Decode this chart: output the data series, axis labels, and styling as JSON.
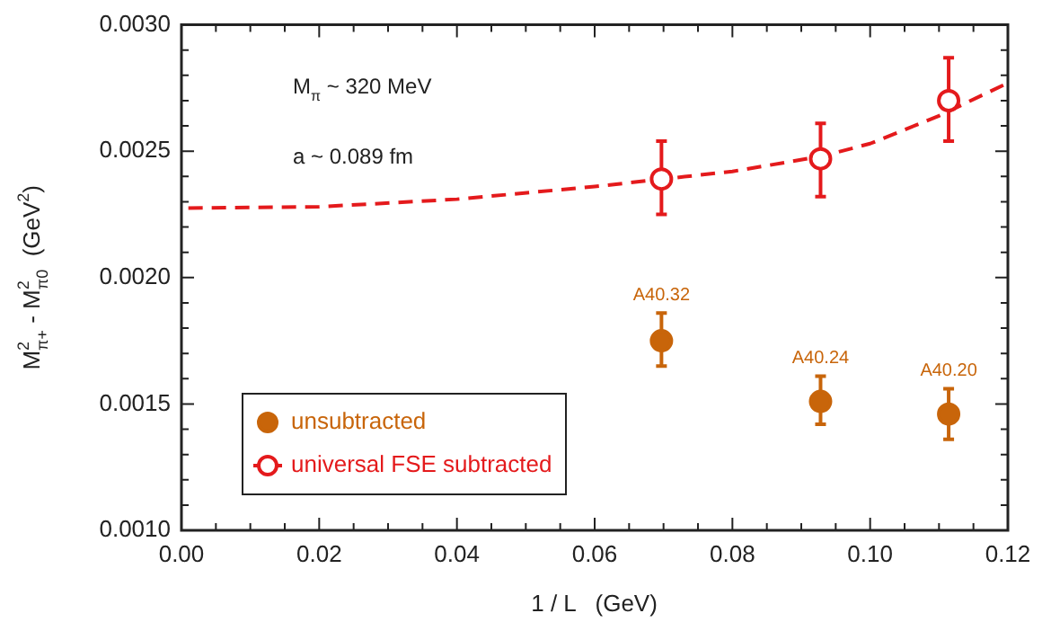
{
  "chart_data": {
    "type": "scatter",
    "xlabel": "1 / L   (GeV)",
    "ylabel": "M$_{π+}$$^{2}$ - M$_{π0}$$^{2}$  (GeV$^{2}$)",
    "xlim": [
      0,
      0.12
    ],
    "ylim": [
      0.001,
      0.003
    ],
    "xticks": [
      {
        "value": 0,
        "label": "0.00"
      },
      {
        "value": 0.02,
        "label": "0.02"
      },
      {
        "value": 0.04,
        "label": "0.04"
      },
      {
        "value": 0.06,
        "label": "0.06"
      },
      {
        "value": 0.08,
        "label": "0.08"
      },
      {
        "value": 0.1,
        "label": "0.10"
      },
      {
        "value": 0.12,
        "label": "0.12"
      }
    ],
    "yticks": [
      {
        "value": 0.001,
        "label": "0.0010"
      },
      {
        "value": 0.0015,
        "label": "0.0015"
      },
      {
        "value": 0.002,
        "label": "0.0020"
      },
      {
        "value": 0.0025,
        "label": "0.0025"
      },
      {
        "value": 0.003,
        "label": "0.0030"
      }
    ],
    "grid": false,
    "legend": "bottom left",
    "marker": "circle",
    "series": [
      {
        "name": "unsubtracted",
        "color": "#c8650a",
        "x": [
          0.0697,
          0.0928,
          0.1114
        ],
        "values": [
          0.00175,
          0.00151,
          0.00146
        ],
        "errors": [
          [
            0.00165,
            0.00186
          ],
          [
            0.00142,
            0.00161
          ],
          [
            0.00136,
            0.00156
          ]
        ]
      },
      {
        "name": "universal FSE subtracted",
        "color": "#e41a1c",
        "x": [
          0.0697,
          0.0928,
          0.1114
        ],
        "values": [
          0.00239,
          0.00247,
          0.0027
        ],
        "errors": [
          [
            0.00225,
            0.00254
          ],
          [
            0.00232,
            0.00261
          ],
          [
            0.00254,
            0.00287
          ]
        ]
      },
      {
        "type": "line",
        "color": "#e41a1c",
        "line_style": "dashed",
        "marker": "none",
        "x": [
          0.001,
          0.02,
          0.04,
          0.06,
          0.07,
          0.08,
          0.093,
          0.1,
          0.11,
          0.12
        ],
        "values": [
          0.002275,
          0.00228,
          0.00231,
          0.00236,
          0.00239,
          0.00242,
          0.00248,
          0.00253,
          0.00264,
          0.00277
        ]
      }
    ],
    "annotations": [
      "M$_{π}$ ~ 320 MeV",
      "a ~ 0.089 fm",
      {
        "text": "A40.32",
        "x": 0.0697,
        "y": 0.00175
      },
      {
        "text": "A40.24",
        "x": 0.0928,
        "y": 0.00151
      },
      {
        "text": "A40.20",
        "x": 0.1114,
        "y": 0.00146
      }
    ]
  }
}
